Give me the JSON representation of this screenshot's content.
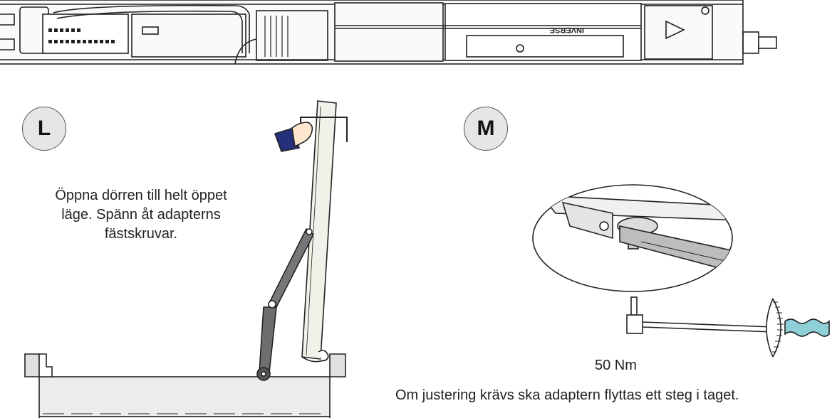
{
  "steps": {
    "l": {
      "label": "L",
      "instruction": "Öppna dörren till helt öppet läge. Spänn åt adapterns fästskruvar."
    },
    "m": {
      "label": "M",
      "torque": "50 Nm",
      "instruction": "Om justering krävs ska adaptern flyttas ett steg i taget."
    }
  },
  "operator_unit": {
    "marking": "INVERSE"
  },
  "colors": {
    "line": "#222222",
    "arm": "#6f6f6f",
    "panel": "#ececec",
    "door": "#f0f0ea",
    "sleeve": "#24307a",
    "handle": "#8fd0d8"
  }
}
